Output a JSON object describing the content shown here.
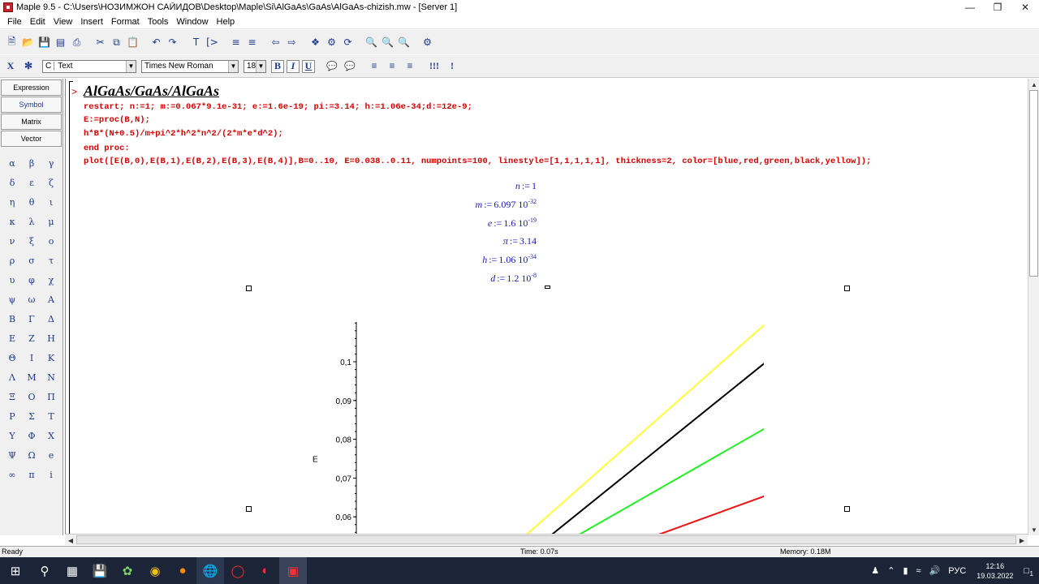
{
  "window": {
    "title": "Maple 9.5 - C:\\Users\\НОЗИМЖОН САЙИДОВ\\Desktop\\Maple\\Si\\AlGaAs\\GaAs\\AlGaAs-chizish.mw - [Server 1]"
  },
  "menu": [
    "File",
    "Edit",
    "View",
    "Insert",
    "Format",
    "Tools",
    "Window",
    "Help"
  ],
  "format_bar": {
    "mode_x": "X",
    "style_value": "Text",
    "style_prefix": "C",
    "font_value": "Times New Roman",
    "size_value": "18",
    "bold": "B",
    "italic": "I",
    "underline": "U"
  },
  "palette": {
    "tabs": [
      "Expression",
      "Symbol",
      "Matrix",
      "Vector"
    ],
    "symbols": [
      "α",
      "β",
      "γ",
      "δ",
      "ε",
      "ζ",
      "η",
      "θ",
      "ι",
      "κ",
      "λ",
      "μ",
      "ν",
      "ξ",
      "ο",
      "ρ",
      "σ",
      "τ",
      "υ",
      "φ",
      "χ",
      "ψ",
      "ω",
      "Α",
      "Β",
      "Γ",
      "Δ",
      "Ε",
      "Ζ",
      "Η",
      "Θ",
      "Ι",
      "Κ",
      "Λ",
      "Μ",
      "Ν",
      "Ξ",
      "Ο",
      "Π",
      "Ρ",
      "Σ",
      "Τ",
      "Υ",
      "Φ",
      "Χ",
      "Ψ",
      "Ω",
      "e",
      "∞",
      "π",
      "i"
    ]
  },
  "worksheet": {
    "prompt": ">",
    "heading": "AlGaAs/GaAs/AlGaAs",
    "code_lines": [
      "restart; n:=1; m:=0.067*9.1e-31; e:=1.6e-19; pi:=3.14; h:=1.06e-34;d:=12e-9;",
      "E:=proc(B,N);",
      "h*B*(N+0.5)/m+pi^2*h^2*n^2/(2*m*e*d^2);",
      "end proc:",
      "plot([E(B,0),E(B,1),E(B,2),E(B,3),E(B,4)],B=0..10, E=0.038..0.11, numpoints=100, linestyle=[1,1,1,1,1], thickness=2, color=[blue,red,green,black,yellow]);"
    ],
    "outputs": [
      {
        "lhs": "n",
        "op": ":=",
        "mant": "1",
        "exp": ""
      },
      {
        "lhs": "m",
        "op": ":=",
        "mant": "6.097 10",
        "exp": "-32"
      },
      {
        "lhs": "e",
        "op": ":=",
        "mant": "1.6 10",
        "exp": "-19"
      },
      {
        "lhs": "π",
        "op": ":=",
        "mant": "3.14",
        "exp": ""
      },
      {
        "lhs": "h",
        "op": ":=",
        "mant": "1.06 10",
        "exp": "-34"
      },
      {
        "lhs": "d",
        "op": ":=",
        "mant": "1.2 10",
        "exp": "-8"
      }
    ]
  },
  "chart_data": {
    "type": "line",
    "xlabel": "",
    "ylabel": "E",
    "ylim": [
      0.038,
      0.11
    ],
    "y_ticks": [
      "0,1",
      "0,09",
      "0,08",
      "0,07",
      "0,06"
    ],
    "y_tick_values": [
      0.1,
      0.09,
      0.08,
      0.07,
      0.06
    ],
    "series": [
      {
        "color": "#ffff3a",
        "points": [
          [
            4.0,
            0.054
          ],
          [
            9.95,
            0.1095
          ]
        ]
      },
      {
        "color": "#000000",
        "points": [
          [
            4.6,
            0.054
          ],
          [
            10.0,
            0.1
          ]
        ]
      },
      {
        "color": "#22ee22",
        "points": [
          [
            5.2,
            0.054
          ],
          [
            10.0,
            0.083
          ]
        ]
      },
      {
        "color": "#ee1111",
        "points": [
          [
            7.0,
            0.054
          ],
          [
            10.0,
            0.0655
          ]
        ]
      }
    ]
  },
  "status": {
    "ready": "Ready",
    "time": "Time: 0.07s",
    "memory": "Memory: 0.18M"
  },
  "taskbar": {
    "lang": "РУС",
    "time": "12:16",
    "date": "19.03.2022",
    "notify_count": "1"
  }
}
